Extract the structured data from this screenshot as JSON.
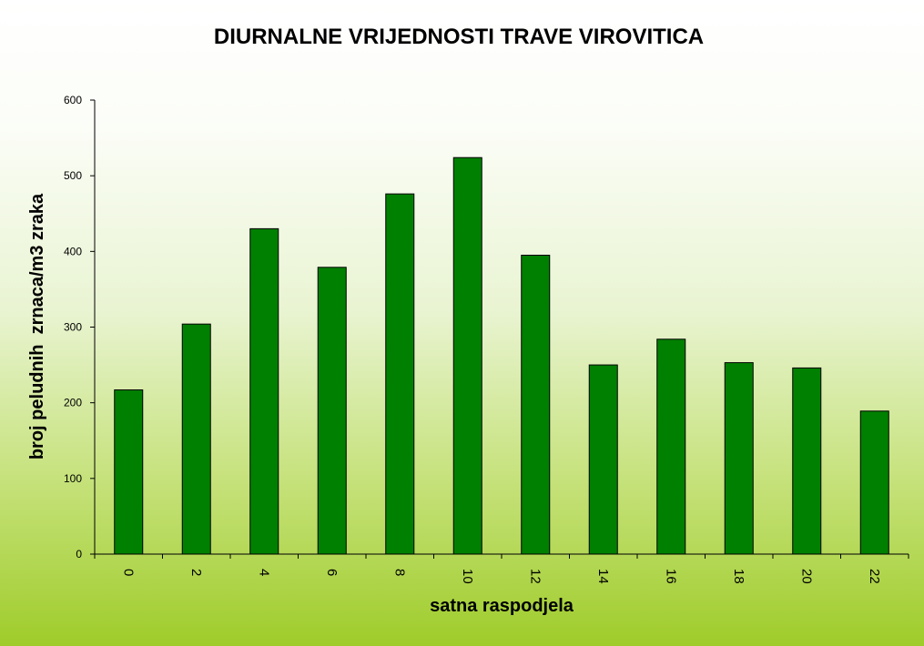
{
  "chart_data": {
    "type": "bar",
    "title": "DIURNALNE VRIJEDNOSTI TRAVE VIROVITICA",
    "xlabel": "satna raspodjela",
    "ylabel": "broj peludnih  zrnaca/m3 zraka",
    "categories": [
      "0",
      "2",
      "4",
      "6",
      "8",
      "10",
      "12",
      "14",
      "16",
      "18",
      "20",
      "22"
    ],
    "values": [
      217,
      304,
      430,
      379,
      476,
      524,
      395,
      250,
      284,
      253,
      246,
      189
    ],
    "ylim": [
      0,
      600
    ],
    "yticks": [
      "0",
      "100",
      "200",
      "300",
      "400",
      "500",
      "600"
    ],
    "grid": false,
    "legend": "none",
    "bar_color": "#008000",
    "bar_stroke": "#000000"
  }
}
